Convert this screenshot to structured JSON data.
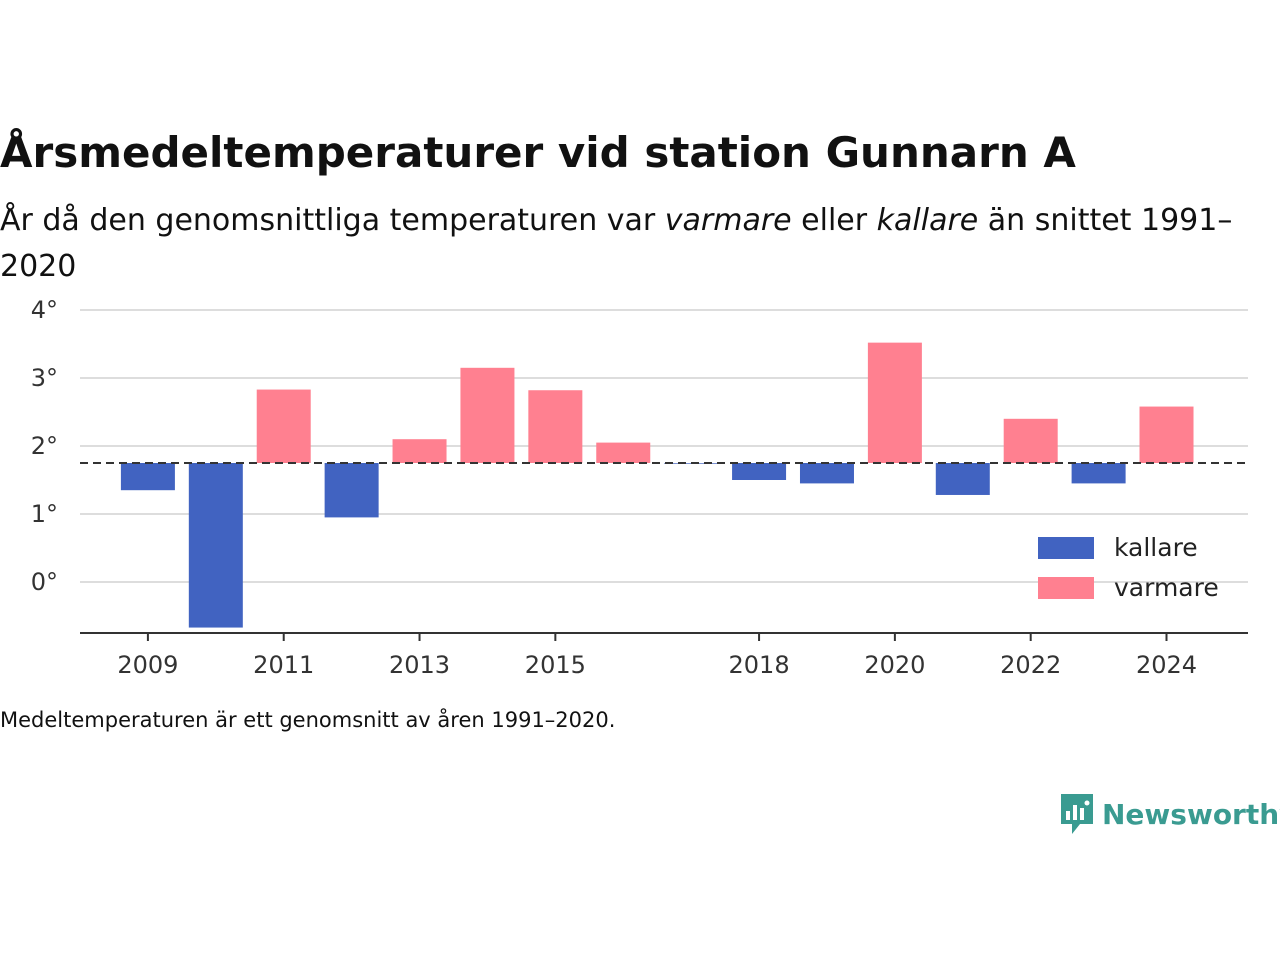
{
  "header": {
    "title": "Årsmedeltemperaturer vid station Gunnarn A",
    "subtitle_part1": "År då den genomsnittliga temperaturen var ",
    "subtitle_em1": "varmare",
    "subtitle_part2": " eller ",
    "subtitle_em2": "kallare",
    "subtitle_part3": " än snittet 1991–2020"
  },
  "footer": {
    "note": "Medeltemperaturen är ett genomsnitt av åren 1991–2020.",
    "brand": "Newsworthy"
  },
  "colors": {
    "kallare": "#4163c1",
    "varmare": "#ff8090",
    "brand": "#3a9b91",
    "grid": "#dddddd",
    "axis": "#333333"
  },
  "chart_data": {
    "type": "bar",
    "title": "Årsmedeltemperaturer vid station Gunnarn A",
    "subtitle": "År då den genomsnittliga temperaturen var varmare eller kallare än snittet 1991–2020",
    "baseline": 1.75,
    "baseline_style": "dashed",
    "x": [
      2009,
      2010,
      2011,
      2012,
      2013,
      2014,
      2015,
      2016,
      2017,
      2018,
      2019,
      2020,
      2021,
      2022,
      2023,
      2024
    ],
    "values": [
      1.35,
      -0.67,
      2.83,
      0.95,
      2.1,
      3.15,
      2.82,
      2.05,
      1.74,
      1.5,
      1.45,
      3.52,
      1.28,
      2.4,
      1.45,
      2.58
    ],
    "xticks": [
      2009,
      2011,
      2013,
      2015,
      2018,
      2020,
      2022,
      2024
    ],
    "xtick_labels": [
      "2009",
      "2011",
      "2013",
      "2015",
      "2018",
      "2020",
      "2022",
      "2024"
    ],
    "yticks": [
      0,
      1,
      2,
      3,
      4
    ],
    "ytick_labels": [
      "0°",
      "1°",
      "2°",
      "3°",
      "4°"
    ],
    "ylim": [
      -0.75,
      4
    ],
    "xlim": [
      2008,
      2025.2
    ],
    "grid": true,
    "legend": {
      "position": "bottom-right",
      "entries": [
        {
          "key": "kallare",
          "label": "kallare"
        },
        {
          "key": "varmare",
          "label": "varmare"
        }
      ]
    }
  }
}
